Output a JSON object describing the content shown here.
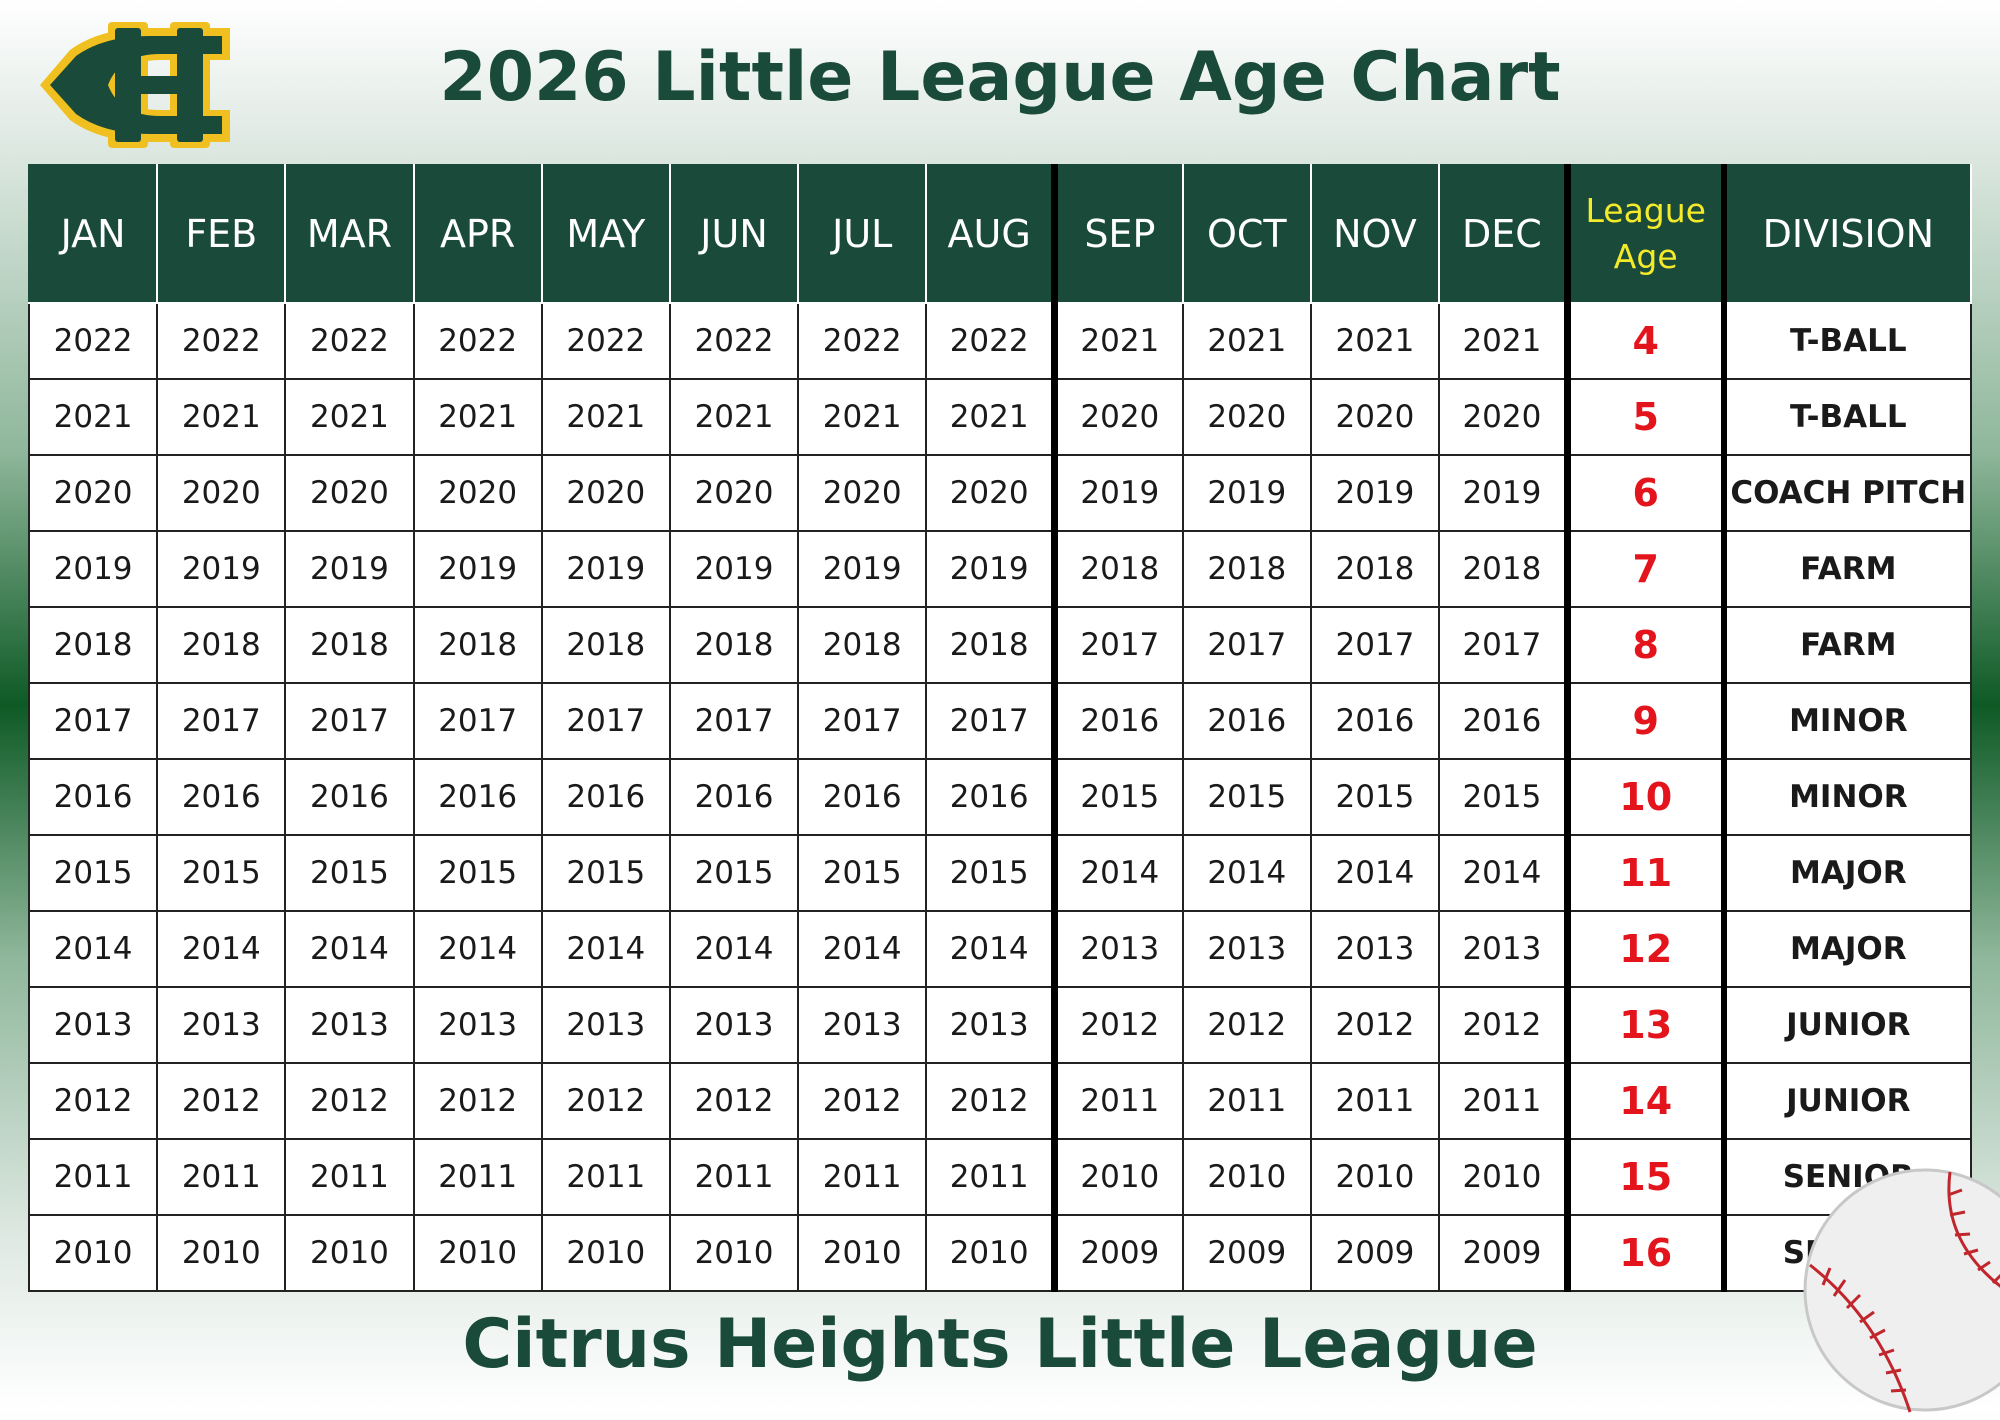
{
  "logo": {
    "text": "CH",
    "icon": "citrus-heights-logo",
    "colors": {
      "green": "#1a4a3a",
      "gold": "#f0c020"
    }
  },
  "title": "2026 Little League Age Chart",
  "footer": "Citrus Heights Little League",
  "colors": {
    "header_bg": "#1a4a3a",
    "league_age_header": "#f5ea2a",
    "age_value": "#e3141b",
    "title": "#1a4a3a"
  },
  "table": {
    "headers": [
      "JAN",
      "FEB",
      "MAR",
      "APR",
      "MAY",
      "JUN",
      "JUL",
      "AUG",
      "SEP",
      "OCT",
      "NOV",
      "DEC"
    ],
    "league_age_header_line1": "League",
    "league_age_header_line2": "Age",
    "division_header": "DIVISION",
    "rows": [
      {
        "years": [
          "2022",
          "2022",
          "2022",
          "2022",
          "2022",
          "2022",
          "2022",
          "2022",
          "2021",
          "2021",
          "2021",
          "2021"
        ],
        "age": "4",
        "division": "T-BALL"
      },
      {
        "years": [
          "2021",
          "2021",
          "2021",
          "2021",
          "2021",
          "2021",
          "2021",
          "2021",
          "2020",
          "2020",
          "2020",
          "2020"
        ],
        "age": "5",
        "division": "T-BALL"
      },
      {
        "years": [
          "2020",
          "2020",
          "2020",
          "2020",
          "2020",
          "2020",
          "2020",
          "2020",
          "2019",
          "2019",
          "2019",
          "2019"
        ],
        "age": "6",
        "division": "COACH PITCH"
      },
      {
        "years": [
          "2019",
          "2019",
          "2019",
          "2019",
          "2019",
          "2019",
          "2019",
          "2019",
          "2018",
          "2018",
          "2018",
          "2018"
        ],
        "age": "7",
        "division": "FARM"
      },
      {
        "years": [
          "2018",
          "2018",
          "2018",
          "2018",
          "2018",
          "2018",
          "2018",
          "2018",
          "2017",
          "2017",
          "2017",
          "2017"
        ],
        "age": "8",
        "division": "FARM"
      },
      {
        "years": [
          "2017",
          "2017",
          "2017",
          "2017",
          "2017",
          "2017",
          "2017",
          "2017",
          "2016",
          "2016",
          "2016",
          "2016"
        ],
        "age": "9",
        "division": "MINOR"
      },
      {
        "years": [
          "2016",
          "2016",
          "2016",
          "2016",
          "2016",
          "2016",
          "2016",
          "2016",
          "2015",
          "2015",
          "2015",
          "2015"
        ],
        "age": "10",
        "division": "MINOR"
      },
      {
        "years": [
          "2015",
          "2015",
          "2015",
          "2015",
          "2015",
          "2015",
          "2015",
          "2015",
          "2014",
          "2014",
          "2014",
          "2014"
        ],
        "age": "11",
        "division": "MAJOR"
      },
      {
        "years": [
          "2014",
          "2014",
          "2014",
          "2014",
          "2014",
          "2014",
          "2014",
          "2014",
          "2013",
          "2013",
          "2013",
          "2013"
        ],
        "age": "12",
        "division": "MAJOR"
      },
      {
        "years": [
          "2013",
          "2013",
          "2013",
          "2013",
          "2013",
          "2013",
          "2013",
          "2013",
          "2012",
          "2012",
          "2012",
          "2012"
        ],
        "age": "13",
        "division": "JUNIOR"
      },
      {
        "years": [
          "2012",
          "2012",
          "2012",
          "2012",
          "2012",
          "2012",
          "2012",
          "2012",
          "2011",
          "2011",
          "2011",
          "2011"
        ],
        "age": "14",
        "division": "JUNIOR"
      },
      {
        "years": [
          "2011",
          "2011",
          "2011",
          "2011",
          "2011",
          "2011",
          "2011",
          "2011",
          "2010",
          "2010",
          "2010",
          "2010"
        ],
        "age": "15",
        "division": "SENIOR"
      },
      {
        "years": [
          "2010",
          "2010",
          "2010",
          "2010",
          "2010",
          "2010",
          "2010",
          "2010",
          "2009",
          "2009",
          "2009",
          "2009"
        ],
        "age": "16",
        "division": "SENIOR"
      }
    ]
  },
  "decor": {
    "baseball_icon": "baseball-icon"
  }
}
